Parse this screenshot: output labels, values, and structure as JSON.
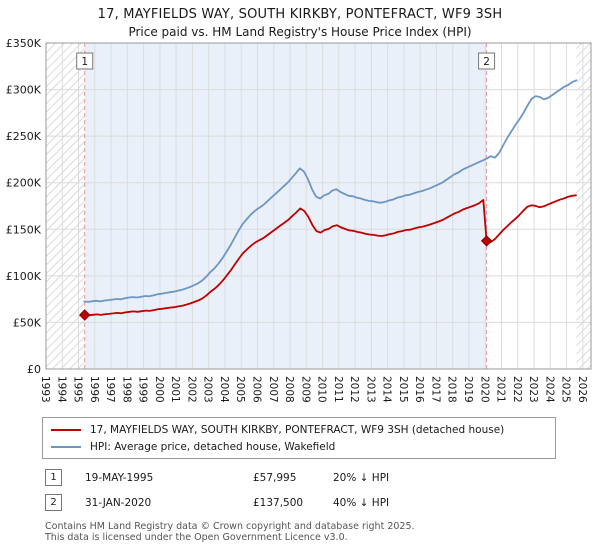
{
  "title": "17, MAYFIELDS WAY, SOUTH KIRKBY, PONTEFRACT, WF9 3SH",
  "subtitle": "Price paid vs. HM Land Registry's House Price Index (HPI)",
  "chart_data": {
    "type": "line",
    "title": "17, MAYFIELDS WAY, SOUTH KIRKBY, PONTEFRACT, WF9 3SH",
    "subtitle": "Price paid vs. HM Land Registry's House Price Index (HPI)",
    "y_unit": "GBP thousands",
    "x_range": [
      1993,
      2026.5
    ],
    "ylim": [
      0,
      350
    ],
    "grid": true,
    "band_region": [
      1995.38,
      2020.08
    ],
    "band_color": "#e9f0f9",
    "hatch_regions": [
      [
        1993,
        1995.35
      ],
      [
        2025.6,
        2026.5
      ]
    ],
    "x_ticks": [
      1993,
      1994,
      1995,
      1996,
      1997,
      1998,
      1999,
      2000,
      2001,
      2002,
      2003,
      2004,
      2005,
      2006,
      2007,
      2008,
      2009,
      2010,
      2011,
      2012,
      2013,
      2014,
      2015,
      2016,
      2017,
      2018,
      2019,
      2020,
      2021,
      2022,
      2023,
      2024,
      2025,
      2026
    ],
    "y_ticks": [
      {
        "value": 0,
        "label": "£0"
      },
      {
        "value": 50,
        "label": "£50K"
      },
      {
        "value": 100,
        "label": "£100K"
      },
      {
        "value": 150,
        "label": "£150K"
      },
      {
        "value": 200,
        "label": "£200K"
      },
      {
        "value": 250,
        "label": "£250K"
      },
      {
        "value": 300,
        "label": "£300K"
      },
      {
        "value": 350,
        "label": "£350K"
      }
    ],
    "series": [
      {
        "name": "17, MAYFIELDS WAY, SOUTH KIRKBY, PONTEFRACT, WF9 3SH (detached house)",
        "color": "#c00000",
        "segments": [
          {
            "x0": 1995.38,
            "dx": 0.25,
            "y": [
              58.0,
              57.6,
              58.2,
              58.6,
              58.1,
              58.8,
              59.2,
              59.7,
              60.2,
              59.8,
              60.8,
              61.4,
              61.8,
              61.4,
              62.1,
              62.7,
              62.4,
              63.2,
              64.2,
              64.6,
              65.3,
              65.9,
              66.4,
              67.2,
              68.0,
              69.1,
              70.4,
              72.0,
              73.6,
              76.0,
              79.2,
              83.2,
              86.4,
              90.4,
              95.2,
              100.8,
              106.4,
              112.8,
              119.2,
              124.8,
              128.8,
              132.8,
              136.0,
              138.4,
              140.8,
              144.0,
              147.2,
              150.4,
              153.6,
              156.8,
              160.0,
              164.0,
              168.0,
              172.4,
              169.6,
              163.2,
              154.4,
              148.0,
              146.4,
              149.2,
              150.4,
              153.2,
              154.4,
              152.0,
              150.4,
              148.8,
              148.4,
              147.2,
              146.4,
              145.2,
              144.4,
              144.0,
              143.2,
              142.8,
              143.6,
              144.8,
              145.6,
              147.2,
              148.0,
              149.2,
              149.6,
              150.8,
              152.0,
              152.8,
              154.0,
              155.2,
              156.8,
              158.4,
              160.0,
              162.4,
              164.8,
              167.2,
              168.8,
              171.2,
              172.8,
              174.4,
              176.0,
              178.0,
              181.5
            ]
          },
          {
            "x0": 2020.08,
            "dx": 0.25,
            "y": [
              137.5,
              136.2,
              139.2,
              144.0,
              148.8,
              153.0,
              157.2,
              160.8,
              165.0,
              169.8,
              174.0,
              175.8,
              175.2,
              173.7,
              174.6,
              176.4,
              178.2,
              180.0,
              181.8,
              183.0,
              184.8,
              186.0,
              186.5
            ]
          }
        ]
      },
      {
        "name": "HPI: Average price, detached house, Wakefield",
        "color": "#6d96c4",
        "segments": [
          {
            "x0": 1995.35,
            "dx": 0.25,
            "y": [
              72.5,
              72.0,
              72.8,
              73.2,
              72.6,
              73.5,
              74.0,
              74.6,
              75.2,
              74.8,
              76.0,
              76.8,
              77.2,
              76.8,
              77.6,
              78.4,
              78.0,
              79.0,
              80.2,
              80.8,
              81.6,
              82.4,
              83.0,
              84.0,
              85.0,
              86.4,
              88.0,
              90.0,
              92.0,
              95.0,
              99.0,
              104.0,
              108.0,
              113.0,
              119.0,
              126.0,
              133.0,
              141.0,
              149.0,
              156.0,
              161.0,
              166.0,
              170.0,
              173.0,
              176.0,
              180.0,
              184.0,
              188.0,
              192.0,
              196.0,
              200.0,
              205.0,
              210.0,
              215.5,
              212.0,
              204.0,
              193.0,
              185.0,
              183.0,
              186.5,
              188.0,
              191.5,
              193.0,
              190.0,
              188.0,
              186.0,
              185.5,
              184.0,
              183.0,
              181.5,
              180.5,
              180.0,
              179.0,
              178.5,
              179.5,
              181.0,
              182.0,
              184.0,
              185.0,
              186.5,
              187.0,
              188.5,
              190.0,
              191.0,
              192.5,
              194.0,
              196.0,
              198.0,
              200.0,
              203.0,
              206.0,
              209.0,
              211.0,
              214.0,
              216.0,
              218.0,
              220.0,
              222.0,
              224.0,
              226.0,
              228.5,
              227.0,
              232.0,
              240.0,
              248.0,
              255.0,
              262.0,
              268.0,
              275.0,
              283.0,
              290.0,
              293.0,
              292.0,
              289.5,
              291.0,
              294.0,
              297.0,
              300.0,
              303.0,
              305.0,
              308.0,
              310.0
            ]
          }
        ]
      }
    ],
    "markers": [
      {
        "label": "1",
        "x": 1995.38,
        "y": 58.0
      },
      {
        "label": "2",
        "x": 2020.08,
        "y": 137.5
      }
    ]
  },
  "transactions": [
    {
      "num": "1",
      "date": "19-MAY-1995",
      "price": "£57,995",
      "vs_hpi": "20% ↓ HPI"
    },
    {
      "num": "2",
      "date": "31-JAN-2020",
      "price": "£137,500",
      "vs_hpi": "40% ↓ HPI"
    }
  ],
  "footer": {
    "line1": "Contains HM Land Registry data © Crown copyright and database right 2025.",
    "line2": "This data is licensed under the Open Government Licence v3.0."
  }
}
